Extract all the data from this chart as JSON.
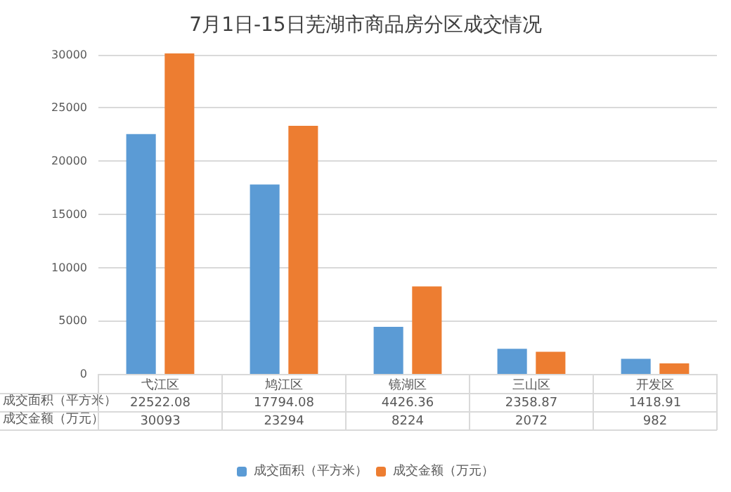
{
  "chart_data": {
    "type": "bar",
    "title": "7月1日-15日芜湖市商品房分区成交情况",
    "categories": [
      "弋江区",
      "鸠江区",
      "镜湖区",
      "三山区",
      "开发区"
    ],
    "series": [
      {
        "name": "成交面积（平方米）",
        "color": "#5b9bd5",
        "values": [
          22522.08,
          17794.08,
          4426.36,
          2358.87,
          1418.91
        ]
      },
      {
        "name": "成交金额（万元）",
        "color": "#ed7d31",
        "values": [
          30093,
          23294,
          8224,
          2072,
          982
        ]
      }
    ],
    "ylim": [
      0,
      30100
    ],
    "yticks": [
      0,
      5000,
      10000,
      15000,
      20000,
      25000,
      30000
    ],
    "grid": "y",
    "legend": "bottom",
    "data_labels": true
  }
}
